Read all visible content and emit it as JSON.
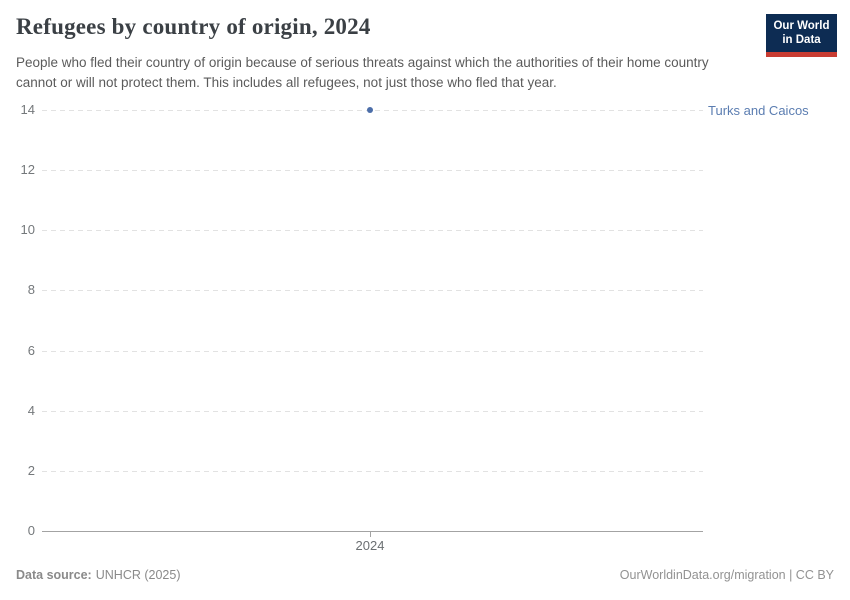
{
  "header": {
    "title": "Refugees by country of origin, 2024",
    "subtitle": "People who fled their country of origin because of serious threats against which the authorities of their home country cannot or will not protect them. This includes all refugees, not just those who fled that year."
  },
  "logo": {
    "line1": "Our World",
    "line2": "in Data",
    "bg_color": "#0d2c53",
    "bar_color": "#c93c32"
  },
  "chart_data": {
    "type": "scatter",
    "title": "Refugees by country of origin, 2024",
    "xlabel": "",
    "ylabel": "",
    "series": [
      {
        "name": "Turks and Caicos",
        "x": [
          2024
        ],
        "y": [
          14
        ],
        "color": "#4c6ea9",
        "label_color": "#5b7db1"
      }
    ],
    "x_tick_labels": [
      "2024"
    ],
    "y_ticks": [
      0,
      2,
      4,
      6,
      8,
      10,
      12,
      14
    ],
    "ylim": [
      0,
      14
    ],
    "grid": "dashed-horizontal",
    "legend": "entity-label-right"
  },
  "footer": {
    "data_source_label": "Data source:",
    "data_source_value": "UNHCR (2025)",
    "right_text": "OurWorldinData.org/migration | CC BY"
  },
  "colors": {
    "grid": "#e2e2e2",
    "axis": "#a3a3a3",
    "tick_text": "#74787b"
  }
}
